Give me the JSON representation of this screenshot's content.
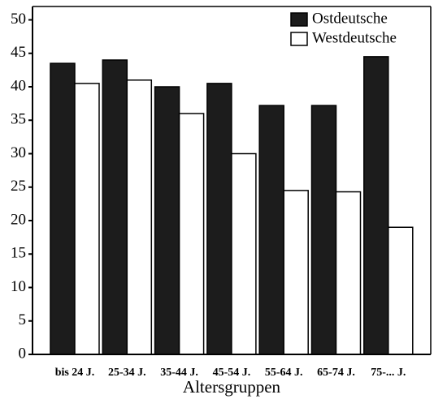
{
  "chart_data": {
    "type": "bar",
    "x_label": "Altersgruppen",
    "categories": [
      "bis 24 J.",
      "25-34 J.",
      "35-44 J.",
      "45-54 J.",
      "55-64 J.",
      "65-74 J.",
      "75-... J."
    ],
    "series": [
      {
        "name": "Ostdeutsche",
        "color": "#1c1c1c",
        "values": [
          43.5,
          44,
          40,
          40.5,
          37.2,
          37.2,
          44.5
        ]
      },
      {
        "name": "Westdeutsche",
        "color": "#ffffff",
        "values": [
          40.5,
          41,
          36,
          30,
          24.5,
          24.3,
          19
        ]
      }
    ],
    "ylim": [
      0,
      52
    ],
    "yticks": [
      0,
      5,
      10,
      15,
      20,
      25,
      30,
      35,
      40,
      45,
      50
    ],
    "legend": "upper right"
  }
}
